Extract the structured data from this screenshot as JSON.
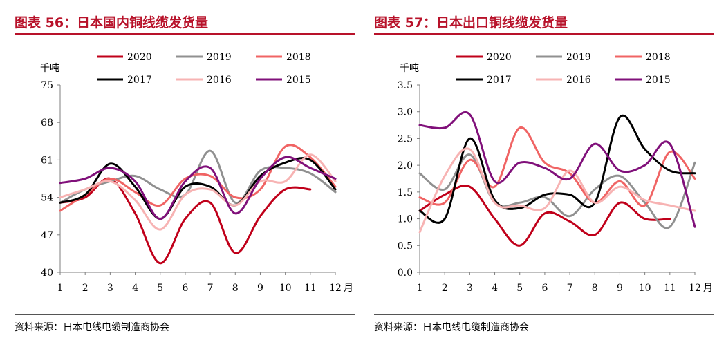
{
  "panels": [
    {
      "title": "图表 56：日本国内铜线缆发货量",
      "source": "资料来源：日本电线电缆制造商协会"
    },
    {
      "title": "图表 57：日本出口铜线缆发货量",
      "source": "资料来源：日本电线电缆制造商协会"
    }
  ],
  "chart_data": [
    {
      "type": "line",
      "title": "",
      "ylabel": "千吨",
      "xlabel": "月",
      "x": [
        1,
        2,
        3,
        4,
        5,
        6,
        7,
        8,
        9,
        10,
        11,
        12
      ],
      "yticks": [
        "40",
        "47",
        "54",
        "61",
        "68",
        "75"
      ],
      "ylim": [
        40,
        75
      ],
      "legend_position": "top",
      "series": [
        {
          "name": "2020",
          "color": "#c0001a",
          "values": [
            53.0,
            54.0,
            57.5,
            51.0,
            41.7,
            50.0,
            53.0,
            43.6,
            50.5,
            55.5,
            55.5,
            null
          ]
        },
        {
          "name": "2019",
          "color": "#909090",
          "values": [
            53.0,
            55.5,
            57.0,
            58.0,
            55.5,
            54.5,
            62.7,
            53.0,
            59.0,
            59.5,
            58.5,
            55.0
          ]
        },
        {
          "name": "2018",
          "color": "#f06464",
          "values": [
            51.5,
            54.5,
            57.5,
            55.0,
            52.5,
            57.5,
            58.0,
            54.0,
            55.5,
            63.5,
            61.5,
            56.0
          ]
        },
        {
          "name": "2017",
          "color": "#000000",
          "values": [
            53.0,
            54.5,
            60.3,
            56.0,
            50.0,
            56.0,
            56.0,
            52.5,
            58.0,
            60.5,
            61.0,
            55.5
          ]
        },
        {
          "name": "2016",
          "color": "#f7b3b3",
          "values": [
            54.0,
            55.5,
            57.0,
            53.5,
            48.0,
            54.5,
            55.5,
            52.5,
            57.0,
            57.0,
            62.0,
            57.0
          ]
        },
        {
          "name": "2015",
          "color": "#80107a",
          "values": [
            56.7,
            57.5,
            59.5,
            57.0,
            50.0,
            57.0,
            59.5,
            51.0,
            57.5,
            61.5,
            59.5,
            57.5
          ]
        }
      ]
    },
    {
      "type": "line",
      "title": "",
      "ylabel": "千吨",
      "xlabel": "月",
      "x": [
        1,
        2,
        3,
        4,
        5,
        6,
        7,
        8,
        9,
        10,
        11,
        12
      ],
      "yticks": [
        "0.0",
        "0.5",
        "1.0",
        "1.5",
        "2.0",
        "2.5",
        "3.0",
        "3.5"
      ],
      "ylim": [
        0,
        3.5
      ],
      "legend_position": "top",
      "series": [
        {
          "name": "2020",
          "color": "#c0001a",
          "values": [
            1.15,
            1.45,
            1.6,
            1.0,
            0.5,
            1.1,
            0.95,
            0.7,
            1.3,
            1.0,
            1.0,
            null
          ]
        },
        {
          "name": "2019",
          "color": "#909090",
          "values": [
            1.85,
            1.55,
            2.2,
            1.3,
            1.3,
            1.4,
            1.05,
            1.55,
            1.8,
            1.3,
            0.85,
            2.05
          ]
        },
        {
          "name": "2018",
          "color": "#f06464",
          "values": [
            1.4,
            1.3,
            2.1,
            1.6,
            2.7,
            2.05,
            1.85,
            1.3,
            1.7,
            1.25,
            2.25,
            1.75
          ]
        },
        {
          "name": "2017",
          "color": "#000000",
          "values": [
            1.15,
            1.0,
            2.5,
            1.35,
            1.2,
            1.45,
            1.45,
            1.3,
            2.9,
            2.3,
            1.9,
            1.85
          ]
        },
        {
          "name": "2016",
          "color": "#f7b3b3",
          "values": [
            0.75,
            1.8,
            2.3,
            1.3,
            1.25,
            1.2,
            1.9,
            1.3,
            1.6,
            1.35,
            1.25,
            1.15
          ]
        },
        {
          "name": "2015",
          "color": "#80107a",
          "values": [
            2.75,
            2.7,
            2.95,
            1.7,
            2.05,
            1.95,
            1.75,
            2.4,
            1.9,
            2.0,
            2.4,
            0.85
          ]
        }
      ]
    }
  ]
}
